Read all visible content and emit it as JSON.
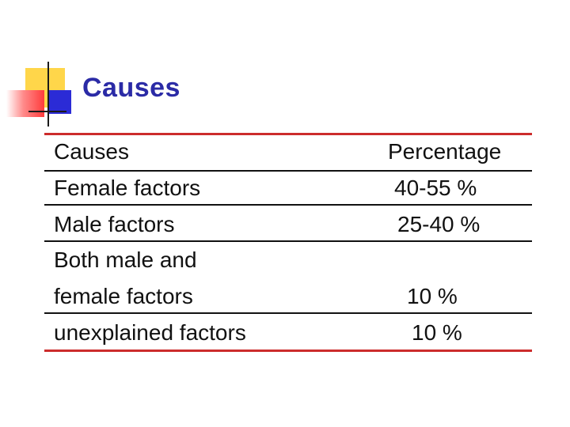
{
  "slide": {
    "title": "Causes"
  },
  "icon": {
    "name": "slide-bullet-logo-icon"
  },
  "table": {
    "header": {
      "cause": "Causes",
      "percentage": "Percentage"
    },
    "rows": [
      {
        "cause": "Female factors",
        "percentage": "40-55 %"
      },
      {
        "cause": "Male factors",
        "percentage": "25-40 %"
      },
      {
        "cause_line1": "Both male and",
        "cause_line2": "female factors",
        "percentage": "10 %"
      },
      {
        "cause": "unexplained factors",
        "percentage": "10 %"
      }
    ]
  },
  "colors": {
    "title": "#2b2ba6",
    "rule_accent": "#cc2c2c",
    "logo_yellow": "#ffd64a",
    "logo_blue": "#2b2bd6",
    "logo_red": "#ff3c3c"
  }
}
